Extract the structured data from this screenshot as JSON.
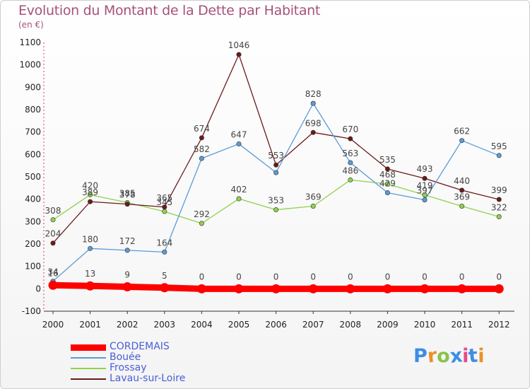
{
  "title": "Evolution du Montant de la Dette par Habitant",
  "subtitle": "(en €)",
  "logo_text": "Proxiti",
  "chart_data": {
    "type": "line",
    "categories": [
      "2000",
      "2001",
      "2002",
      "2003",
      "2004",
      "2005",
      "2006",
      "2007",
      "2008",
      "2009",
      "2010",
      "2011",
      "2012"
    ],
    "ylim": [
      -100,
      1100
    ],
    "yticks": [
      -100,
      0,
      100,
      200,
      300,
      400,
      500,
      600,
      700,
      800,
      900,
      1000,
      1100
    ],
    "grid": false,
    "legend_position": "bottom-left",
    "series": [
      {
        "name": "CORDEMAIS",
        "color": "#ff0000",
        "values": [
          16,
          13,
          9,
          5,
          0,
          0,
          0,
          0,
          0,
          0,
          0,
          0,
          0
        ]
      },
      {
        "name": "Bouée",
        "color": "#5b9bd5",
        "values": [
          34,
          180,
          172,
          164,
          582,
          647,
          519,
          828,
          563,
          429,
          397,
          662,
          595
        ]
      },
      {
        "name": "Frossay",
        "color": "#8fd14f",
        "values": [
          308,
          420,
          385,
          345,
          292,
          402,
          353,
          369,
          486,
          468,
          419,
          369,
          322
        ]
      },
      {
        "name": "Lavau-sur-Loire",
        "color": "#6b1a1a",
        "values": [
          204,
          389,
          378,
          365,
          674,
          1046,
          553,
          698,
          670,
          535,
          493,
          440,
          399
        ]
      }
    ],
    "data_labels": [
      {
        "series": 0,
        "labels": [
          "16",
          "13",
          "9",
          "5",
          "0",
          "0",
          "0",
          "0",
          "0",
          "0",
          "0",
          "0",
          "0"
        ]
      },
      {
        "series": 1,
        "labels": [
          "34",
          "180",
          "172",
          "164",
          "582",
          "647",
          "",
          "828",
          "563",
          "429",
          "397",
          "662",
          "595"
        ]
      },
      {
        "series": 2,
        "labels": [
          "308",
          "420",
          "385",
          "345",
          "292",
          "402",
          "353",
          "369",
          "486",
          "468",
          "419",
          "369",
          "322"
        ]
      },
      {
        "series": 3,
        "labels": [
          "204",
          "389",
          "378",
          "365",
          "674",
          "1046",
          "553",
          "698",
          "670",
          "535",
          "493",
          "440",
          "399"
        ]
      }
    ]
  },
  "logo_colors": [
    "#3a8ee6",
    "#e8912a",
    "#8bc34a",
    "#3a8ee6",
    "#e84a8a",
    "#3a8ee6",
    "#e8912a"
  ]
}
